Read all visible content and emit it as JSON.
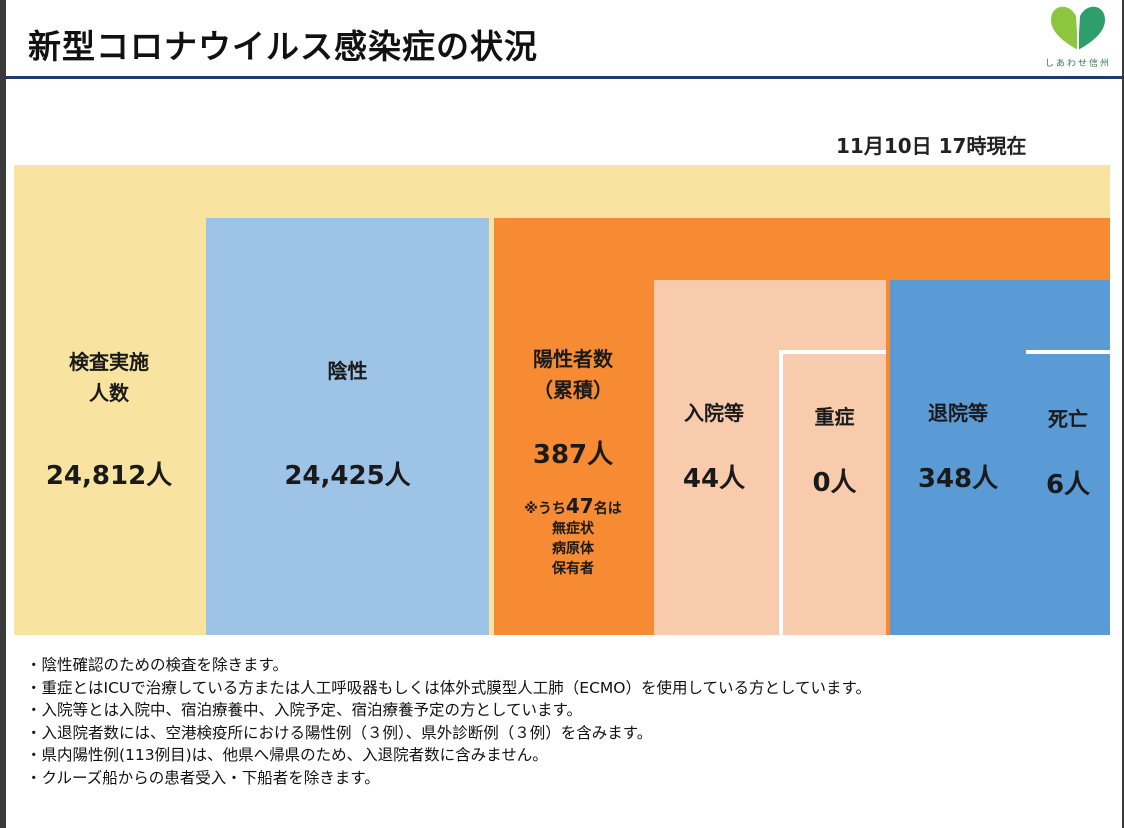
{
  "header": {
    "title": "新型コロナウイルス感染症の状況",
    "logo_text": "しあわせ信州",
    "timestamp": "11月10日 17時現在"
  },
  "colors": {
    "tested": "#f9e3a0",
    "negative": "#9dc3e6",
    "positive": "#f68b33",
    "hospitalized": "#f8cbad",
    "recovered": "#5b9bd5"
  },
  "chart_data": {
    "type": "treemap",
    "nodes": [
      {
        "id": "tested",
        "label": "検査実施人数",
        "value_label": "24,812人",
        "value": 24812
      },
      {
        "id": "negative",
        "label": "陰性",
        "value_label": "24,425人",
        "value": 24425,
        "parent": "tested"
      },
      {
        "id": "positive",
        "label": "陽性者数（累積）",
        "value_label": "387人",
        "value": 387,
        "parent": "tested",
        "note_prefix": "※うち",
        "note_number": "47",
        "note_suffix": "名は",
        "note_lines": [
          "無症状",
          "病原体",
          "保有者"
        ]
      },
      {
        "id": "hospitalized",
        "label": "入院等",
        "value_label": "44人",
        "value": 44,
        "parent": "positive"
      },
      {
        "id": "severe",
        "label": "重症",
        "value_label": "0人",
        "value": 0,
        "parent": "hospitalized"
      },
      {
        "id": "recovered",
        "label": "退院等",
        "value_label": "348人",
        "value": 348,
        "parent": "positive"
      },
      {
        "id": "deaths",
        "label": "死亡",
        "value_label": "6人",
        "value": 6,
        "parent": "positive"
      }
    ]
  },
  "blocks": {
    "tested": {
      "label_line1": "検査実施",
      "label_line2": "人数",
      "value": "24,812人"
    },
    "negative": {
      "label": "陰性",
      "value": "24,425人"
    },
    "positive": {
      "label_line1": "陽性者数",
      "label_line2": "（累積）",
      "value": "387人",
      "note_prefix": "※うち",
      "note_number": "47",
      "note_suffix": "名は",
      "note_line1": "無症状",
      "note_line2": "病原体",
      "note_line3": "保有者"
    },
    "hospitalized": {
      "label": "入院等",
      "value": "44人"
    },
    "severe": {
      "label": "重症",
      "value": "0人"
    },
    "recovered": {
      "label": "退院等",
      "value": "348人"
    },
    "deaths": {
      "label": "死亡",
      "value": "6人"
    }
  },
  "footnotes": [
    "・陰性確認のための検査を除きます。",
    "・重症とはICUで治療している方または人工呼吸器もしくは体外式膜型人工肺（ECMO）を使用している方としています。",
    "・入院等とは入院中、宿泊療養中、入院予定、宿泊療養予定の方としています。",
    "・入退院者数には、空港検疫所における陽性例（３例）、県外診断例（３例）を含みます。",
    "・県内陽性例(113例目)は、他県へ帰県のため、入退院者数に含みません。",
    "・クルーズ船からの患者受入・下船者を除きます。"
  ]
}
